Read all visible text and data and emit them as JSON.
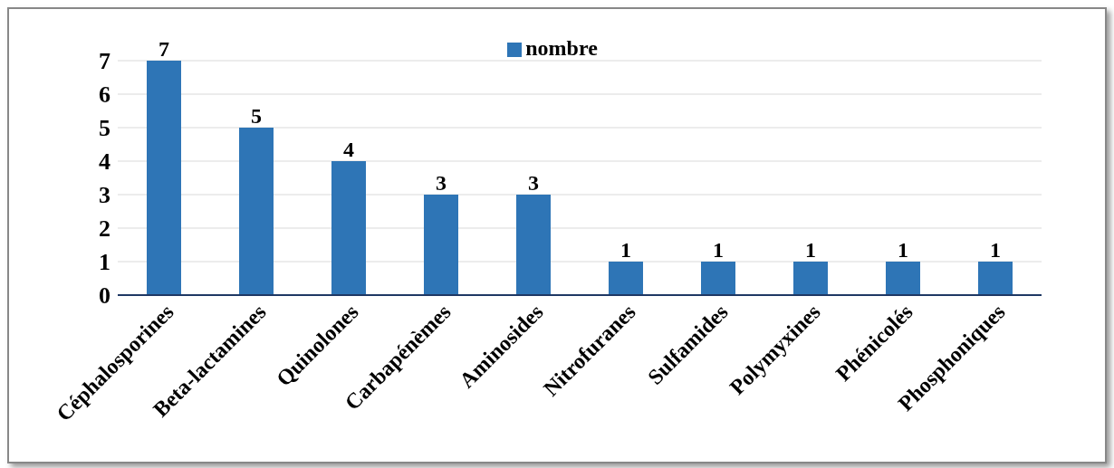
{
  "chart_data": {
    "type": "bar",
    "categories": [
      "Céphalosporines",
      "Beta-lactamines",
      "Quinolones",
      "Carbapénèmes",
      "Aminosides",
      "Nitrofuranes",
      "Sulfamides",
      "Polymyxines",
      "Phénicolés",
      "Phosphoniques"
    ],
    "series": [
      {
        "name": "nombre",
        "color": "#2e75b6",
        "values": [
          7,
          5,
          4,
          3,
          3,
          1,
          1,
          1,
          1,
          1
        ]
      }
    ],
    "ylim": [
      0,
      7
    ],
    "yticks": [
      0,
      1,
      2,
      3,
      4,
      5,
      6,
      7
    ],
    "grid": "y",
    "legend": "top",
    "data_labels": true
  }
}
